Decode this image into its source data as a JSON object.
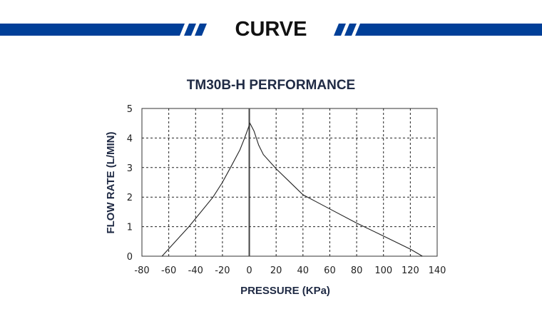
{
  "banner": {
    "heading": "CURVE",
    "accent_color": "#003f98"
  },
  "chart_data": {
    "type": "line",
    "title": "TM30B-H PERFORMANCE",
    "xlabel": "PRESSURE (KPa)",
    "ylabel": "FLOW RATE (L/MIN)",
    "xlim": [
      -80,
      140
    ],
    "ylim": [
      0,
      5
    ],
    "xticks": [
      -80,
      -60,
      -40,
      -20,
      0,
      20,
      40,
      60,
      80,
      100,
      120,
      140
    ],
    "yticks": [
      0,
      1,
      2,
      3,
      4,
      5
    ],
    "grid": true,
    "grid_style": "dashed",
    "title_color": "#1f2a44",
    "series": [
      {
        "x": [
          -65,
          -45,
          -27,
          -20,
          -14,
          -7,
          -3.5,
          0.5,
          3.5,
          7,
          10.5,
          20,
          30,
          40,
          50,
          60,
          80,
          100,
          120,
          129
        ],
        "y": [
          0,
          1,
          2,
          2.5,
          3,
          3.6,
          4,
          4.5,
          4.24,
          3.76,
          3.44,
          2.96,
          2.52,
          2.08,
          1.84,
          1.6,
          1.12,
          0.68,
          0.24,
          0
        ]
      }
    ]
  }
}
